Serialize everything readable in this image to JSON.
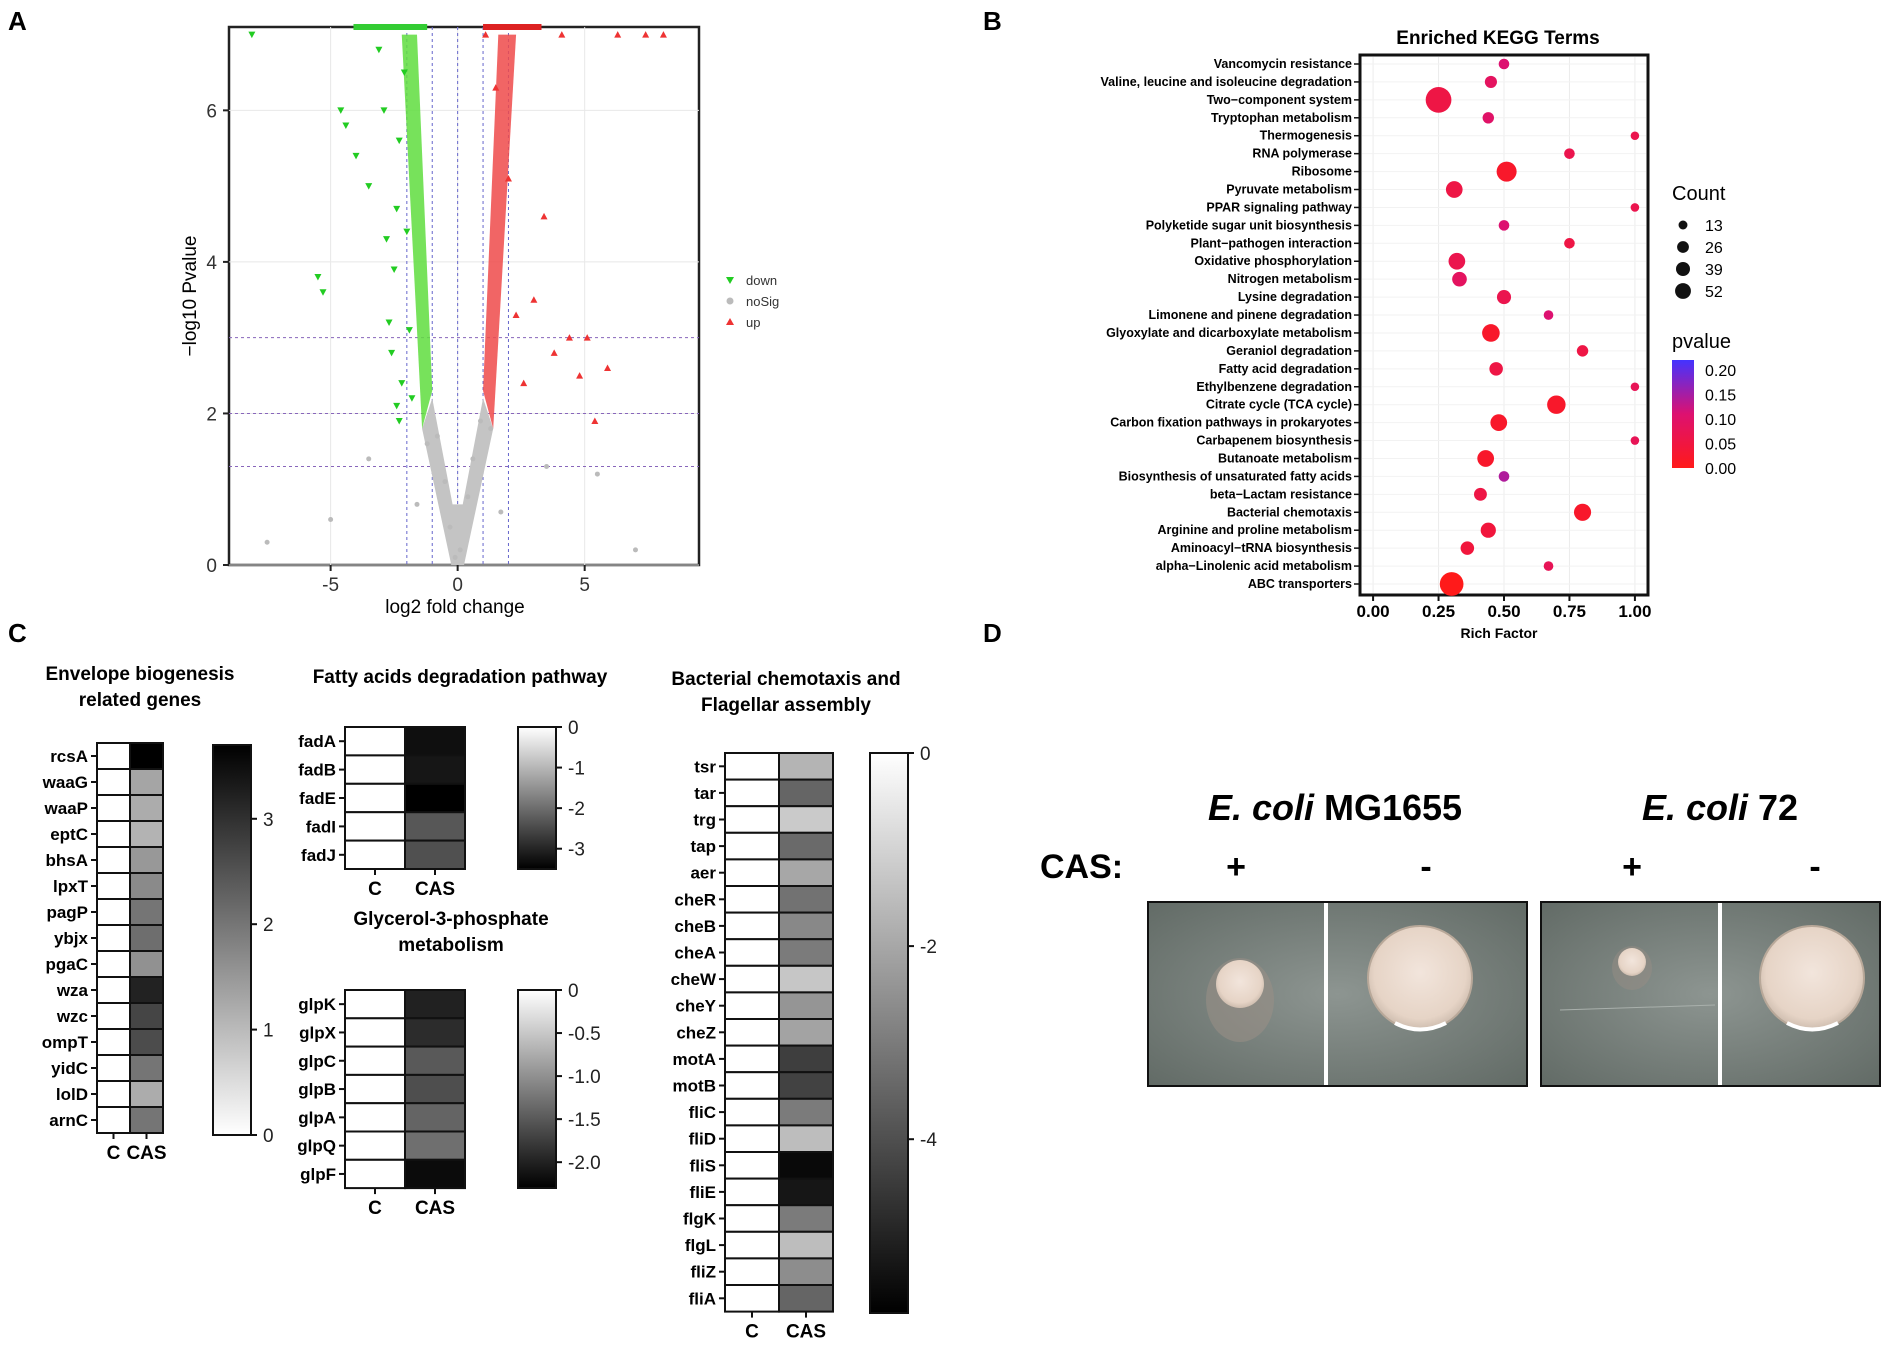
{
  "panel_labels": [
    "A",
    "B",
    "C",
    "D"
  ],
  "chart_data": [
    {
      "panel": "A",
      "type": "scatter",
      "xlabel": "log2 fold change",
      "ylabel": "−log10 Pvalue",
      "xlim": [
        -9,
        9.5
      ],
      "ylim": [
        0,
        7.1
      ],
      "xticks": [
        "-5",
        "0",
        "5"
      ],
      "yticks": [
        "0",
        "2",
        "4",
        "6"
      ],
      "threshold_lines_y": [
        1.3,
        2,
        3
      ],
      "threshold_lines_x": [
        -2,
        -1,
        0,
        1,
        2
      ],
      "legend": [
        {
          "label": "down",
          "color": "#22cc22",
          "shape": "triangle-down"
        },
        {
          "label": "noSig",
          "color": "#bbbbbb",
          "shape": "circle"
        },
        {
          "label": "up",
          "color": "#ee3333",
          "shape": "triangle-up"
        }
      ],
      "series": [
        {
          "name": "down",
          "points": [
            [
              -8.1,
              7.0
            ],
            [
              -5.5,
              3.8
            ],
            [
              -5.3,
              3.6
            ],
            [
              -4.6,
              6.0
            ],
            [
              -4.4,
              5.8
            ],
            [
              -4.0,
              5.4
            ],
            [
              -3.5,
              5.0
            ],
            [
              -3.1,
              6.8
            ],
            [
              -2.9,
              6.0
            ],
            [
              -2.8,
              4.3
            ],
            [
              -2.7,
              3.2
            ],
            [
              -2.6,
              2.8
            ],
            [
              -2.5,
              3.9
            ],
            [
              -2.4,
              4.7
            ],
            [
              -2.3,
              5.6
            ],
            [
              -2.2,
              2.4
            ],
            [
              -2.1,
              6.5
            ],
            [
              -2.0,
              4.4
            ],
            [
              -2.3,
              1.9
            ],
            [
              -2.4,
              2.1
            ],
            [
              -1.9,
              3.1
            ],
            [
              -1.8,
              2.2
            ]
          ]
        },
        {
          "name": "noSig",
          "points": [
            [
              -0.1,
              0.1
            ],
            [
              0.1,
              0.2
            ],
            [
              -0.3,
              0.5
            ],
            [
              0.4,
              0.9
            ],
            [
              -0.5,
              1.1
            ],
            [
              0.6,
              1.4
            ],
            [
              -0.8,
              1.7
            ],
            [
              0.9,
              1.9
            ],
            [
              -1.2,
              1.6
            ],
            [
              1.3,
              1.8
            ],
            [
              -1.6,
              0.8
            ],
            [
              1.7,
              0.7
            ],
            [
              -3.5,
              1.4
            ],
            [
              3.5,
              1.3
            ],
            [
              -5.0,
              0.6
            ],
            [
              5.5,
              1.2
            ],
            [
              -7.5,
              0.3
            ],
            [
              7.0,
              0.2
            ]
          ]
        },
        {
          "name": "up",
          "points": [
            [
              1.1,
              7.0
            ],
            [
              1.5,
              6.3
            ],
            [
              2.0,
              5.1
            ],
            [
              2.3,
              3.3
            ],
            [
              2.6,
              2.4
            ],
            [
              3.0,
              3.5
            ],
            [
              3.4,
              4.6
            ],
            [
              3.8,
              2.8
            ],
            [
              4.1,
              7.0
            ],
            [
              4.4,
              3.0
            ],
            [
              4.8,
              2.5
            ],
            [
              5.1,
              3.0
            ],
            [
              5.4,
              1.9
            ],
            [
              5.9,
              2.6
            ],
            [
              6.3,
              7.0
            ],
            [
              7.4,
              7.0
            ],
            [
              8.1,
              7.0
            ]
          ]
        }
      ]
    },
    {
      "panel": "B",
      "type": "scatter",
      "title": "Enriched KEGG Terms",
      "xlabel": "Rich Factor",
      "xlim": [
        -0.05,
        1.05
      ],
      "xticks": [
        "0.00",
        "0.25",
        "0.50",
        "0.75",
        "1.00"
      ],
      "terms": [
        "Vancomycin resistance",
        "Valine, leucine and isoleucine degradation",
        "Two−component system",
        "Tryptophan metabolism",
        "Thermogenesis",
        "RNA polymerase",
        "Ribosome",
        "Pyruvate metabolism",
        "PPAR signaling pathway",
        "Polyketide sugar unit biosynthesis",
        "Plant−pathogen interaction",
        "Oxidative phosphorylation",
        "Nitrogen metabolism",
        "Lysine degradation",
        "Limonene and pinene degradation",
        "Glyoxylate and dicarboxylate metabolism",
        "Geraniol degradation",
        "Fatty acid degradation",
        "Ethylbenzene degradation",
        "Citrate cycle (TCA cycle)",
        "Carbon fixation pathways in prokaryotes",
        "Carbapenem biosynthesis",
        "Butanoate metabolism",
        "Biosynthesis of unsaturated fatty acids",
        "beta−Lactam resistance",
        "Bacterial chemotaxis",
        "Arginine and proline metabolism",
        "Aminoacyl−tRNA biosynthesis",
        "alpha−Linolenic acid metabolism",
        "ABC transporters"
      ],
      "rich_factor": [
        0.5,
        0.45,
        0.25,
        0.44,
        1.0,
        0.75,
        0.51,
        0.31,
        1.0,
        0.5,
        0.75,
        0.32,
        0.33,
        0.5,
        0.67,
        0.45,
        0.8,
        0.47,
        1.0,
        0.7,
        0.48,
        1.0,
        0.43,
        0.5,
        0.41,
        0.8,
        0.44,
        0.36,
        0.67,
        0.3
      ],
      "count": [
        4,
        6,
        40,
        5,
        2,
        4,
        22,
        14,
        2,
        4,
        4,
        14,
        10,
        9,
        3,
        16,
        5,
        8,
        2,
        18,
        14,
        2,
        14,
        4,
        7,
        15,
        11,
        8,
        3,
        33
      ],
      "pvalue": [
        0.1,
        0.08,
        0.05,
        0.09,
        0.06,
        0.06,
        0.02,
        0.05,
        0.06,
        0.1,
        0.05,
        0.06,
        0.08,
        0.06,
        0.1,
        0.02,
        0.05,
        0.05,
        0.07,
        0.02,
        0.02,
        0.07,
        0.02,
        0.13,
        0.05,
        0.02,
        0.04,
        0.04,
        0.07,
        0.0
      ],
      "legend_count_title": "Count",
      "legend_count_values": [
        "13",
        "26",
        "39",
        "52"
      ],
      "legend_pvalue_title": "pvalue",
      "legend_pvalue_ticks": [
        "0.20",
        "0.15",
        "0.10",
        "0.05",
        "0.00"
      ],
      "colorscale": [
        "#ff1a1a",
        "#4433ff"
      ]
    },
    {
      "panel": "C",
      "type": "heatmap",
      "heatmaps": [
        {
          "title": [
            "Envelope biogenesis",
            "related genes"
          ],
          "rows": [
            "rcsA",
            "waaG",
            "waaP",
            "eptC",
            "bhsA",
            "lpxT",
            "pagP",
            "ybjx",
            "pgaC",
            "wza",
            "wzc",
            "ompT",
            "yidC",
            "lolD",
            "arnC"
          ],
          "columns": [
            "C",
            "CAS"
          ],
          "values": [
            3.7,
            1.3,
            1.2,
            1.1,
            1.5,
            1.7,
            2.0,
            2.1,
            1.6,
            3.2,
            2.7,
            2.6,
            2.0,
            1.2,
            2.0
          ],
          "range": [
            0,
            3.7
          ],
          "ticks": [
            0,
            1,
            2,
            3
          ],
          "tick_labels": [
            "0",
            "1",
            "2",
            "3"
          ]
        },
        {
          "title": [
            "Fatty acids degradation pathway"
          ],
          "rows": [
            "fadA",
            "fadB",
            "fadE",
            "fadI",
            "fadJ"
          ],
          "columns": [
            "C",
            "CAS"
          ],
          "values": [
            -3.3,
            -3.2,
            -3.5,
            -2.3,
            -2.4
          ],
          "range": [
            -3.5,
            0
          ],
          "ticks": [
            0,
            -1,
            -2,
            -3
          ],
          "tick_labels": [
            "0",
            "-1",
            "-2",
            "-3"
          ]
        },
        {
          "title": [
            "Glycerol-3-phosphate",
            "metabolism"
          ],
          "rows": [
            "glpK",
            "glpX",
            "glpC",
            "glpB",
            "glpA",
            "glpQ",
            "glpF"
          ],
          "columns": [
            "C",
            "CAS"
          ],
          "values": [
            -2.0,
            -1.9,
            -1.5,
            -1.6,
            -1.4,
            -1.3,
            -2.2
          ],
          "range": [
            -2.3,
            0
          ],
          "ticks": [
            0,
            -0.5,
            -1.0,
            -1.5,
            -2.0
          ],
          "tick_labels": [
            "0",
            "-0.5",
            "-1.0",
            "-1.5",
            "-2.0"
          ]
        },
        {
          "title": [
            "Bacterial chemotaxis and",
            "Flagellar assembly"
          ],
          "rows": [
            "tsr",
            "tar",
            "trg",
            "tap",
            "aer",
            "cheR",
            "cheB",
            "cheA",
            "cheW",
            "cheY",
            "cheZ",
            "motA",
            "motB",
            "fliC",
            "fliD",
            "fliS",
            "fliE",
            "flgK",
            "flgL",
            "fliZ",
            "fliA"
          ],
          "columns": [
            "C",
            "CAS"
          ],
          "values": [
            -1.7,
            -3.5,
            -1.2,
            -3.4,
            -2.0,
            -3.2,
            -2.7,
            -3.0,
            -1.3,
            -2.4,
            -2.1,
            -4.4,
            -4.3,
            -3.0,
            -1.5,
            -5.6,
            -5.3,
            -3.0,
            -1.5,
            -2.6,
            -3.5
          ],
          "range": [
            -5.8,
            0
          ],
          "ticks": [
            0,
            -2,
            -4
          ],
          "tick_labels": [
            "0",
            "-2",
            "-4"
          ]
        }
      ]
    }
  ],
  "panel_D": {
    "strain_1_italic": "E. coli",
    "strain_1_name": " MG1655",
    "strain_2_italic": "E. coli",
    "strain_2_name": " 72",
    "cas_label": "CAS:",
    "signs": [
      "+",
      "-",
      "+",
      "-"
    ]
  }
}
